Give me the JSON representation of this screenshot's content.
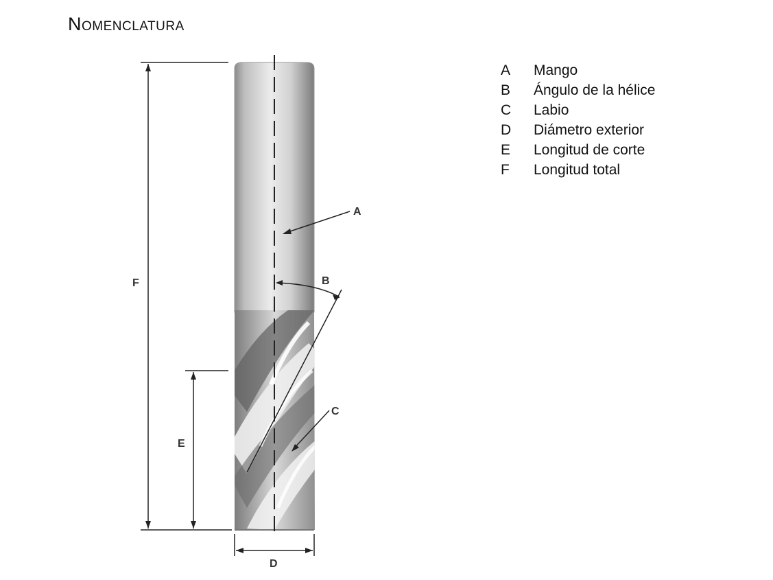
{
  "title": "Nomenclatura",
  "labels": {
    "a": "A",
    "b": "B",
    "c": "C",
    "d": "D",
    "e": "E",
    "f": "F"
  },
  "legend": [
    {
      "key": "A",
      "text": "Mango"
    },
    {
      "key": "B",
      "text": "Ángulo de la hélice"
    },
    {
      "key": "C",
      "text": "Labio"
    },
    {
      "key": "D",
      "text": "Diámetro exterior"
    },
    {
      "key": "E",
      "text": "Longitud de corte"
    },
    {
      "key": "F",
      "text": "Longitud total"
    }
  ],
  "colors": {
    "tool_light": "#e8e8e8",
    "tool_mid": "#b5b5b5",
    "tool_dark": "#6f6f6f",
    "line": "#222222"
  }
}
